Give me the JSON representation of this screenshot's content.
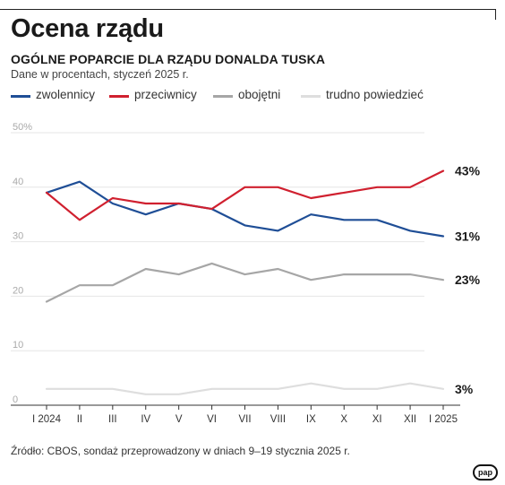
{
  "title": "Ocena rządu",
  "subtitle": "OGÓLNE POPARCIE DLA RZĄDU DONALDA TUSKA",
  "note": "Dane w procentach, styczeń 2025 r.",
  "source": "Źródło: CBOS, sondaż przeprowadzony w dniach 9–19 stycznia 2025 r.",
  "logo": "pap",
  "chart_data": {
    "type": "line",
    "title": "Ocena rządu",
    "subtitle": "OGÓLNE POPARCIE DLA RZĄDU DONALDA TUSKA",
    "categories": [
      "I 2024",
      "II",
      "III",
      "IV",
      "V",
      "VI",
      "VII",
      "VIII",
      "IX",
      "X",
      "XI",
      "XII",
      "I 2025"
    ],
    "ylim": [
      0,
      50
    ],
    "yticks": [
      0,
      10,
      20,
      30,
      40,
      50
    ],
    "ytick_labels": [
      "0",
      "10",
      "20",
      "30",
      "40",
      "50%"
    ],
    "grid": true,
    "legend_position": "top",
    "series": [
      {
        "name": "zwolennicy",
        "color": "#1f4e96",
        "values": [
          39,
          41,
          37,
          35,
          37,
          36,
          33,
          32,
          35,
          34,
          34,
          32,
          31
        ],
        "end_label": "31%"
      },
      {
        "name": "przeciwnicy",
        "color": "#d0202f",
        "values": [
          39,
          34,
          38,
          37,
          37,
          36,
          40,
          40,
          38,
          39,
          40,
          40,
          43
        ],
        "end_label": "43%"
      },
      {
        "name": "obojętni",
        "color": "#a6a6a6",
        "values": [
          19,
          22,
          22,
          25,
          24,
          26,
          24,
          25,
          23,
          24,
          24,
          24,
          23
        ],
        "end_label": "23%"
      },
      {
        "name": "trudno powiedzieć",
        "color": "#dedede",
        "values": [
          3,
          3,
          3,
          2,
          2,
          3,
          3,
          3,
          4,
          3,
          3,
          4,
          3
        ],
        "end_label": "3%"
      }
    ]
  }
}
